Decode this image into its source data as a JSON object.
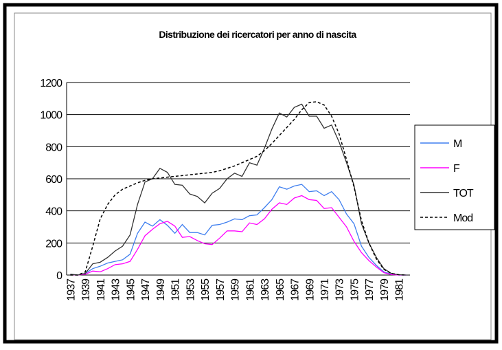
{
  "chart_data": {
    "type": "line",
    "title": "Distribuzione dei ricercatori per anno di nascita",
    "categories": [
      "1937",
      null,
      "1939",
      null,
      "1941",
      null,
      "1943",
      null,
      "1945",
      null,
      "1947",
      null,
      "1949",
      null,
      "1951",
      null,
      "1953",
      null,
      "1955",
      null,
      "1957",
      null,
      "1959",
      null,
      "1961",
      null,
      "1963",
      null,
      "1965",
      null,
      "1967",
      null,
      "1969",
      null,
      "1971",
      null,
      "1973",
      null,
      "1975",
      null,
      "1977",
      null,
      "1979",
      null,
      "1981",
      null
    ],
    "series": [
      {
        "name": "M",
        "color": "#3f7fef",
        "dashed": false,
        "values": [
          5,
          0,
          10,
          40,
          55,
          75,
          85,
          95,
          130,
          260,
          330,
          305,
          345,
          310,
          260,
          315,
          265,
          265,
          250,
          310,
          315,
          330,
          350,
          345,
          370,
          375,
          420,
          470,
          550,
          535,
          555,
          565,
          520,
          525,
          495,
          520,
          470,
          380,
          320,
          180,
          110,
          60,
          20,
          5,
          0,
          0
        ]
      },
      {
        "name": "F",
        "color": "#ff00ff",
        "dashed": false,
        "values": [
          3,
          0,
          5,
          25,
          20,
          40,
          65,
          70,
          85,
          160,
          245,
          285,
          320,
          335,
          305,
          235,
          240,
          215,
          195,
          190,
          230,
          275,
          275,
          270,
          325,
          315,
          350,
          410,
          450,
          440,
          480,
          495,
          470,
          465,
          415,
          420,
          360,
          300,
          210,
          140,
          90,
          50,
          15,
          3,
          0,
          0
        ]
      },
      {
        "name": "TOT",
        "color": "#333333",
        "dashed": false,
        "values": [
          5,
          0,
          10,
          70,
          80,
          110,
          150,
          180,
          250,
          440,
          580,
          600,
          665,
          640,
          565,
          560,
          505,
          490,
          450,
          510,
          540,
          600,
          635,
          615,
          700,
          685,
          790,
          910,
          1010,
          985,
          1045,
          1065,
          990,
          990,
          915,
          935,
          830,
          700,
          560,
          320,
          200,
          110,
          40,
          10,
          2,
          0
        ]
      },
      {
        "name": "Mod",
        "color": "#000000",
        "dashed": true,
        "values": [
          0,
          0,
          20,
          180,
          350,
          440,
          500,
          535,
          555,
          575,
          590,
          600,
          605,
          610,
          615,
          620,
          625,
          630,
          635,
          640,
          650,
          665,
          680,
          700,
          720,
          740,
          775,
          820,
          870,
          920,
          970,
          1030,
          1075,
          1080,
          1060,
          990,
          880,
          720,
          550,
          340,
          200,
          100,
          35,
          10,
          2,
          0
        ]
      }
    ],
    "ylim": [
      0,
      1200
    ],
    "yticks": [
      0,
      200,
      400,
      600,
      800,
      1000,
      1200
    ],
    "grid": true,
    "legend": "right"
  }
}
